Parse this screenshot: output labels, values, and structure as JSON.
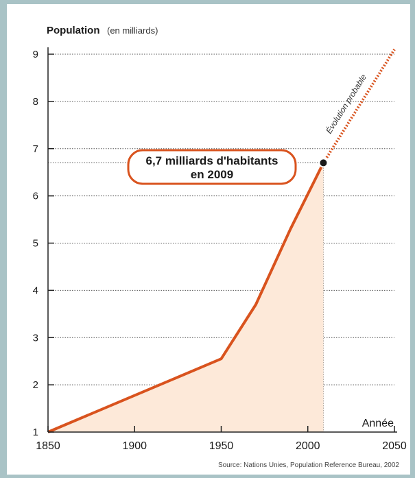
{
  "chart_data": {
    "type": "area",
    "title": "Population",
    "title_unit": "(en milliards)",
    "xlabel": "Année",
    "ylabel": "Population",
    "xlim": [
      1850,
      2050
    ],
    "ylim": [
      1,
      9
    ],
    "x_ticks": [
      1850,
      1900,
      1950,
      2000,
      2050
    ],
    "y_ticks": [
      1,
      2,
      3,
      4,
      5,
      6,
      7,
      8,
      9
    ],
    "grid": true,
    "series": [
      {
        "style": "solid",
        "x": [
          1850,
          1950,
          1970,
          1990,
          2009
        ],
        "values": [
          1.0,
          2.55,
          3.7,
          5.3,
          6.7
        ]
      },
      {
        "name": "Évolution probable",
        "style": "dotted",
        "x": [
          2009,
          2050
        ],
        "values": [
          6.7,
          9.1
        ]
      }
    ],
    "annotation": {
      "line1": "6,7 milliards d'habitants",
      "line2": "en 2009",
      "x": 2009,
      "y": 6.7
    },
    "projection_label": "Évolution probable",
    "source": "Source: Nations Unies, Population Reference Bureau, 2002",
    "colors": {
      "line": "#d9531e",
      "fill": "#fde9d9",
      "marker": "#1a1a1a",
      "background": "#a9c3c6"
    }
  }
}
